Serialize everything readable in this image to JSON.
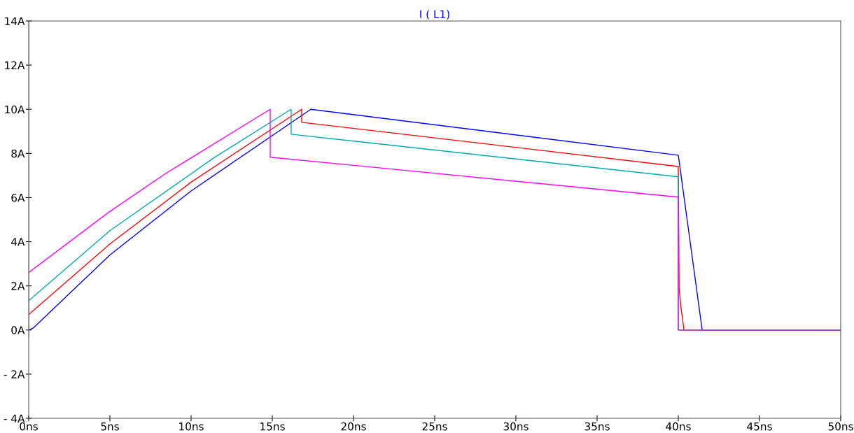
{
  "chart_data": {
    "type": "line",
    "title": "I ( L1)",
    "xlim": [
      0,
      50
    ],
    "ylim": [
      -4,
      14
    ],
    "xticks": [
      {
        "value": 0,
        "label": "0ns"
      },
      {
        "value": 5,
        "label": "5ns"
      },
      {
        "value": 10,
        "label": "10ns"
      },
      {
        "value": 15,
        "label": "15ns"
      },
      {
        "value": 20,
        "label": "20ns"
      },
      {
        "value": 25,
        "label": "25ns"
      },
      {
        "value": 30,
        "label": "30ns"
      },
      {
        "value": 35,
        "label": "35ns"
      },
      {
        "value": 40,
        "label": "40ns"
      },
      {
        "value": 45,
        "label": "45ns"
      },
      {
        "value": 50,
        "label": "50ns"
      }
    ],
    "yticks": [
      {
        "value": -4,
        "label": "- 4A"
      },
      {
        "value": -2,
        "label": "- 2A"
      },
      {
        "value": 0,
        "label": "0A"
      },
      {
        "value": 2,
        "label": "2A"
      },
      {
        "value": 4,
        "label": "4A"
      },
      {
        "value": 6,
        "label": "6A"
      },
      {
        "value": 8,
        "label": "8A"
      },
      {
        "value": 10,
        "label": "10A"
      },
      {
        "value": 12,
        "label": "12A"
      },
      {
        "value": 14,
        "label": "14A"
      }
    ],
    "grid": false,
    "legend": false,
    "marker": "none",
    "line_style": "solid",
    "series": [
      {
        "color": "#0000ff",
        "x": [
          0,
          0.3,
          5,
          10,
          17.37,
          40.0,
          41.47,
          50
        ],
        "values": [
          0,
          0.1,
          3.4,
          6.3,
          10.0,
          7.92,
          0,
          0
        ]
      },
      {
        "color": "#ff0000",
        "x": [
          0,
          5,
          10,
          16.81,
          16.81,
          40.0,
          40.05,
          40.15,
          40.35,
          50
        ],
        "values": [
          0.7,
          3.9,
          6.7,
          10.0,
          9.41,
          7.41,
          1.9,
          1.1,
          0,
          0
        ]
      },
      {
        "color": "#00aaaa",
        "x": [
          0,
          5,
          11.4,
          16.16,
          16.16,
          40.0,
          40.0,
          50
        ],
        "values": [
          1.33,
          4.5,
          7.8,
          10.0,
          8.87,
          6.94,
          0,
          0
        ]
      },
      {
        "color": "#ff00ff",
        "x": [
          0,
          0,
          0,
          4.9,
          8.45,
          14.87,
          14.87,
          40.0,
          40.0,
          50
        ],
        "values": [
          -0.3,
          14,
          2.6,
          5.32,
          7.1,
          10.0,
          7.83,
          6.02,
          0,
          0
        ]
      }
    ]
  }
}
